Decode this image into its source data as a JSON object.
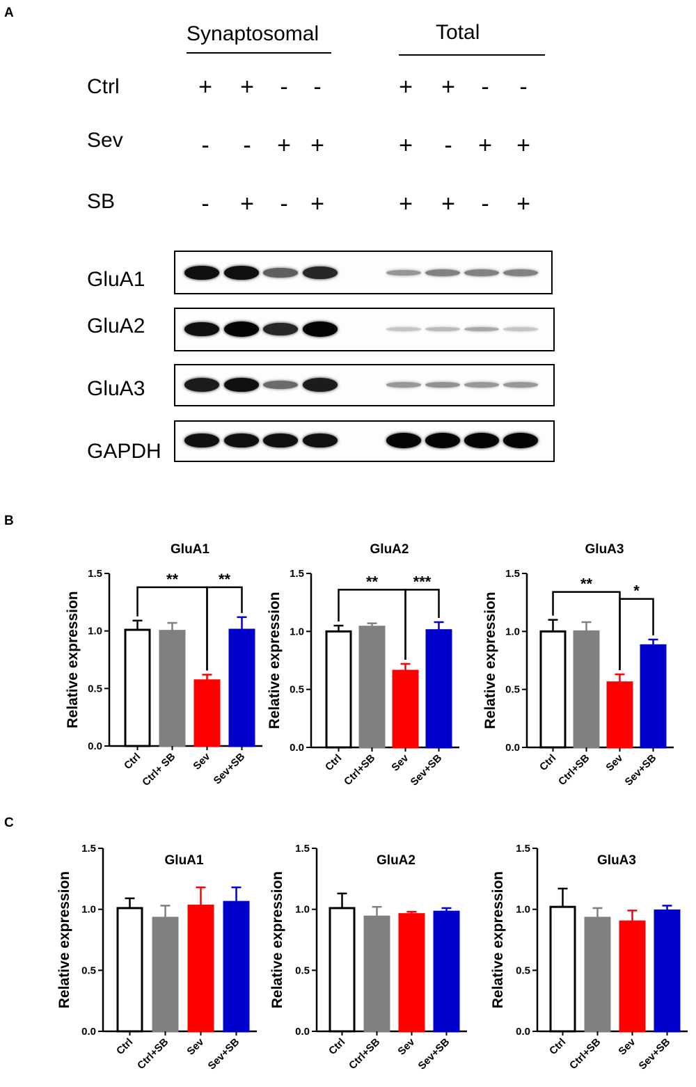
{
  "panels": {
    "a": "A",
    "b": "B",
    "c": "C"
  },
  "blot": {
    "group_labels": [
      "Synaptosomal",
      "Total"
    ],
    "treatments": [
      {
        "label": "Ctrl",
        "signs": [
          "+",
          "+",
          "-",
          "-",
          "+",
          "+",
          "-",
          "-"
        ]
      },
      {
        "label": "Sev",
        "signs": [
          "-",
          "-",
          "+",
          "+",
          "+",
          "-",
          "+",
          "+"
        ]
      },
      {
        "label": "SB",
        "signs": [
          "-",
          "+",
          "-",
          "+",
          "+",
          "+",
          "-",
          "+"
        ]
      }
    ],
    "proteins": [
      "GluA1",
      "GluA2",
      "GluA3",
      "GAPDH"
    ],
    "band_intensity": [
      [
        0.95,
        0.95,
        0.6,
        0.85,
        0.35,
        0.45,
        0.45,
        0.45
      ],
      [
        0.95,
        1.0,
        0.85,
        1.0,
        0.15,
        0.2,
        0.28,
        0.15
      ],
      [
        0.9,
        0.95,
        0.55,
        0.9,
        0.35,
        0.38,
        0.35,
        0.35
      ],
      [
        0.95,
        0.95,
        0.95,
        0.95,
        1.0,
        1.0,
        1.0,
        1.0
      ]
    ]
  },
  "colors": {
    "ctrl": "#ffffff",
    "ctrl_sb": "#808080",
    "sev": "#ff0000",
    "sev_sb": "#0000cd"
  },
  "chart_data": [
    {
      "panel": "B",
      "type": "bar",
      "title": "GluA1",
      "ylabel": "Relative expression",
      "ylim": [
        0,
        1.5
      ],
      "yticks": [
        "0.0",
        "0.5",
        "1.0",
        "1.5"
      ],
      "categories": [
        "Ctrl",
        "Ctrl+ SB",
        "Sev",
        "Sev+SB"
      ],
      "values": [
        1.01,
        1.0,
        0.57,
        1.01
      ],
      "errors": [
        0.08,
        0.07,
        0.05,
        0.11
      ],
      "significance": [
        {
          "from": 0,
          "to": 2,
          "y": 1.38,
          "label": "**"
        },
        {
          "from": 2,
          "to": 3,
          "y": 1.38,
          "label": "**"
        }
      ]
    },
    {
      "panel": "B",
      "type": "bar",
      "title": "GluA2",
      "ylabel": "Relative expression",
      "ylim": [
        0,
        1.5
      ],
      "yticks": [
        "0.0",
        "0.5",
        "1.0",
        "1.5"
      ],
      "categories": [
        "Ctrl",
        "Ctrl+SB",
        "Sev",
        "Sev+SB"
      ],
      "values": [
        1.0,
        1.04,
        0.66,
        1.01
      ],
      "errors": [
        0.05,
        0.03,
        0.06,
        0.07
      ],
      "significance": [
        {
          "from": 0,
          "to": 2,
          "y": 1.36,
          "label": "**"
        },
        {
          "from": 2,
          "to": 3,
          "y": 1.36,
          "label": "***"
        }
      ]
    },
    {
      "panel": "B",
      "type": "bar",
      "title": "GluA3",
      "ylabel": "Relative expression",
      "ylim": [
        0,
        1.5
      ],
      "yticks": [
        "0.0",
        "0.5",
        "1.0",
        "1.5"
      ],
      "categories": [
        "Ctrl",
        "Ctrl+SB",
        "Sev",
        "Sev+SB"
      ],
      "values": [
        1.0,
        1.0,
        0.56,
        0.88
      ],
      "errors": [
        0.1,
        0.08,
        0.07,
        0.05
      ],
      "significance": [
        {
          "from": 0,
          "to": 2,
          "y": 1.34,
          "label": "**"
        },
        {
          "from": 2,
          "to": 3,
          "y": 1.28,
          "label": "*"
        }
      ]
    },
    {
      "panel": "C",
      "type": "bar",
      "title": "GluA1",
      "ylabel": "Relative expression",
      "ylim": [
        0,
        1.5
      ],
      "yticks": [
        "0.0",
        "0.5",
        "1.0",
        "1.5"
      ],
      "categories": [
        "Ctrl",
        "Ctrl+SB",
        "Sev",
        "Sev+SB"
      ],
      "values": [
        1.01,
        0.93,
        1.03,
        1.06
      ],
      "errors": [
        0.08,
        0.1,
        0.15,
        0.12
      ],
      "significance": []
    },
    {
      "panel": "C",
      "type": "bar",
      "title": "GluA2",
      "ylabel": "Relative expression",
      "ylim": [
        0,
        1.5
      ],
      "yticks": [
        "0.0",
        "0.5",
        "1.0",
        "1.5"
      ],
      "categories": [
        "Ctrl",
        "Ctrl+SB",
        "Sev",
        "Sev+SB"
      ],
      "values": [
        1.01,
        0.94,
        0.96,
        0.98
      ],
      "errors": [
        0.12,
        0.08,
        0.02,
        0.03
      ],
      "significance": []
    },
    {
      "panel": "C",
      "type": "bar",
      "title": "GluA3",
      "ylabel": "Relative expression",
      "ylim": [
        0,
        1.5
      ],
      "yticks": [
        "0.0",
        "0.5",
        "1.0",
        "1.5"
      ],
      "categories": [
        "Ctrl",
        "Ctrl+SB",
        "Sev",
        "Sev+SB"
      ],
      "values": [
        1.02,
        0.93,
        0.9,
        0.99
      ],
      "errors": [
        0.15,
        0.08,
        0.09,
        0.04
      ],
      "significance": []
    }
  ]
}
